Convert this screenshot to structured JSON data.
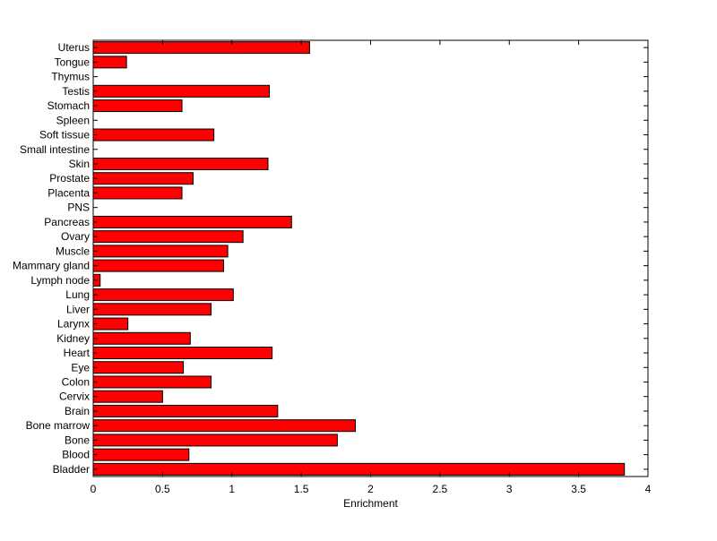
{
  "chart_data": {
    "type": "bar",
    "orientation": "horizontal",
    "categories": [
      "Uterus",
      "Tongue",
      "Thymus",
      "Testis",
      "Stomach",
      "Spleen",
      "Soft tissue",
      "Small intestine",
      "Skin",
      "Prostate",
      "Placenta",
      "PNS",
      "Pancreas",
      "Ovary",
      "Muscle",
      "Mammary gland",
      "Lymph node",
      "Lung",
      "Liver",
      "Larynx",
      "Kidney",
      "Heart",
      "Eye",
      "Colon",
      "Cervix",
      "Brain",
      "Bone marrow",
      "Bone",
      "Blood",
      "Bladder"
    ],
    "values": [
      1.56,
      0.24,
      0,
      1.27,
      0.64,
      0,
      0.87,
      0,
      1.26,
      0.72,
      0.64,
      0,
      1.43,
      1.08,
      0.97,
      0.94,
      0.05,
      1.01,
      0.85,
      0.25,
      0.7,
      1.29,
      0.65,
      0.85,
      0.5,
      1.33,
      1.89,
      1.76,
      0.69,
      3.83
    ],
    "xlabel": "Enrichment",
    "ylabel": "",
    "title": "",
    "xlim": [
      0,
      4
    ],
    "xticks": [
      "0",
      "0.5",
      "1",
      "1.5",
      "2",
      "2.5",
      "3",
      "3.5",
      "4"
    ],
    "grid": false,
    "bar_color": "#ff0000",
    "bar_edge_color": "#000000"
  }
}
